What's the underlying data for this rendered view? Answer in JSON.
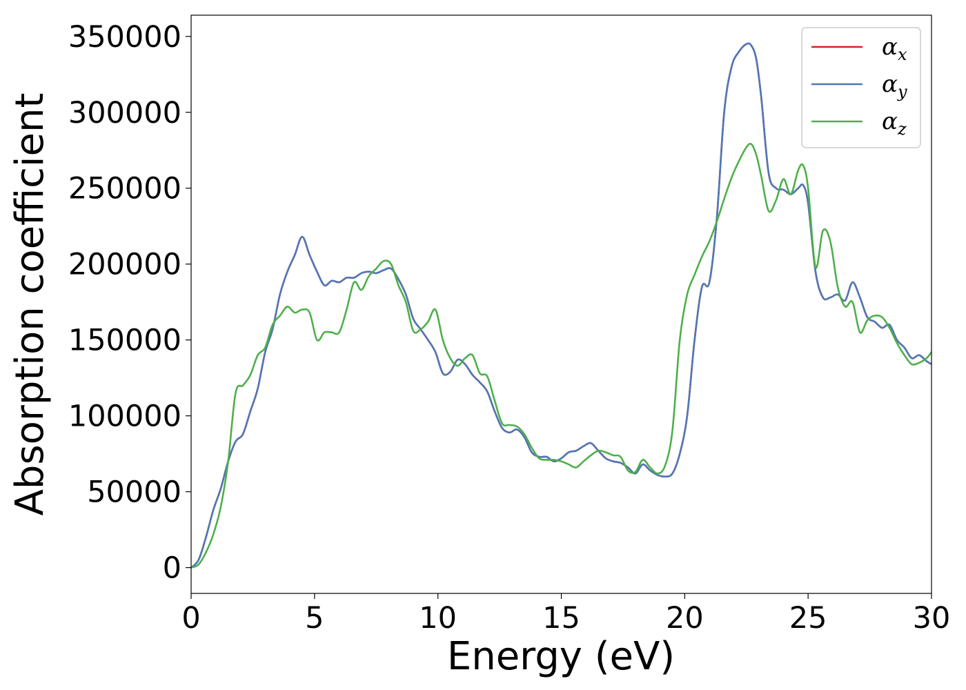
{
  "chart_data": {
    "type": "line",
    "title": "",
    "xlabel": "Energy (eV)",
    "ylabel": "Absorption coefficient",
    "xlim": [
      0,
      30
    ],
    "ylim": [
      -17000,
      364000
    ],
    "xticks": [
      0,
      5,
      10,
      15,
      20,
      25,
      30
    ],
    "yticks": [
      0,
      50000,
      100000,
      150000,
      200000,
      250000,
      300000,
      350000
    ],
    "grid": false,
    "legend_position": "top-right",
    "series": [
      {
        "name": "α",
        "subscript": "x",
        "color": "#e41a1c",
        "x": [
          0,
          0.3,
          0.6,
          0.9,
          1.2,
          1.5,
          1.8,
          2.1,
          2.4,
          2.7,
          3.0,
          3.3,
          3.6,
          3.9,
          4.2,
          4.5,
          4.8,
          5.1,
          5.4,
          5.7,
          6.0,
          6.3,
          6.6,
          6.9,
          7.2,
          7.5,
          7.8,
          8.1,
          8.4,
          8.7,
          9.0,
          9.3,
          9.6,
          9.9,
          10.2,
          10.5,
          10.8,
          11.1,
          11.4,
          11.7,
          12.0,
          12.3,
          12.6,
          12.9,
          13.2,
          13.5,
          13.8,
          14.1,
          14.4,
          14.7,
          15.0,
          15.3,
          15.6,
          15.9,
          16.2,
          16.5,
          16.8,
          17.1,
          17.4,
          17.7,
          18.0,
          18.3,
          18.6,
          18.9,
          19.2,
          19.5,
          19.8,
          20.1,
          20.4,
          20.7,
          21.0,
          21.3,
          21.6,
          21.9,
          22.2,
          22.5,
          22.7,
          22.9,
          23.1,
          23.4,
          23.7,
          24.0,
          24.3,
          24.6,
          24.8,
          25.0,
          25.3,
          25.6,
          25.9,
          26.2,
          26.5,
          26.8,
          27.1,
          27.4,
          27.7,
          28.0,
          28.3,
          28.6,
          28.9,
          29.2,
          29.5,
          29.8,
          30.0
        ],
        "y": [
          0,
          5000,
          20000,
          38000,
          52000,
          70000,
          83000,
          88000,
          103000,
          118000,
          142000,
          157000,
          180000,
          195000,
          206000,
          218000,
          206000,
          195000,
          186000,
          189000,
          188000,
          191000,
          191000,
          194000,
          195000,
          194000,
          196000,
          197000,
          190000,
          180000,
          164000,
          157000,
          150000,
          142000,
          128000,
          129000,
          137000,
          134000,
          127000,
          122000,
          116000,
          103000,
          92000,
          89000,
          91000,
          86000,
          76000,
          73000,
          73000,
          70000,
          72000,
          76000,
          77000,
          80000,
          82000,
          77000,
          72000,
          70000,
          69000,
          66000,
          62000,
          68000,
          64000,
          61000,
          60000,
          62000,
          75000,
          100000,
          150000,
          185000,
          188000,
          230000,
          300000,
          330000,
          340000,
          345000,
          344000,
          335000,
          310000,
          260000,
          250000,
          249000,
          246000,
          250000,
          252000,
          240000,
          195000,
          178000,
          178000,
          180000,
          176000,
          188000,
          178000,
          165000,
          162000,
          158000,
          160000,
          150000,
          145000,
          138000,
          140000,
          136000,
          134000
        ]
      },
      {
        "name": "α",
        "subscript": "y",
        "color": "#4e79b7",
        "x": [
          0,
          0.3,
          0.6,
          0.9,
          1.2,
          1.5,
          1.8,
          2.1,
          2.4,
          2.7,
          3.0,
          3.3,
          3.6,
          3.9,
          4.2,
          4.5,
          4.8,
          5.1,
          5.4,
          5.7,
          6.0,
          6.3,
          6.6,
          6.9,
          7.2,
          7.5,
          7.8,
          8.1,
          8.4,
          8.7,
          9.0,
          9.3,
          9.6,
          9.9,
          10.2,
          10.5,
          10.8,
          11.1,
          11.4,
          11.7,
          12.0,
          12.3,
          12.6,
          12.9,
          13.2,
          13.5,
          13.8,
          14.1,
          14.4,
          14.7,
          15.0,
          15.3,
          15.6,
          15.9,
          16.2,
          16.5,
          16.8,
          17.1,
          17.4,
          17.7,
          18.0,
          18.3,
          18.6,
          18.9,
          19.2,
          19.5,
          19.8,
          20.1,
          20.4,
          20.7,
          21.0,
          21.3,
          21.6,
          21.9,
          22.2,
          22.5,
          22.7,
          22.9,
          23.1,
          23.4,
          23.7,
          24.0,
          24.3,
          24.6,
          24.8,
          25.0,
          25.3,
          25.6,
          25.9,
          26.2,
          26.5,
          26.8,
          27.1,
          27.4,
          27.7,
          28.0,
          28.3,
          28.6,
          28.9,
          29.2,
          29.5,
          29.8,
          30.0
        ],
        "y": [
          0,
          5000,
          20000,
          38000,
          52000,
          70000,
          83000,
          88000,
          103000,
          118000,
          142000,
          157000,
          180000,
          195000,
          206000,
          218000,
          206000,
          195000,
          186000,
          189000,
          188000,
          191000,
          191000,
          194000,
          195000,
          194000,
          196000,
          197000,
          190000,
          180000,
          164000,
          157000,
          150000,
          142000,
          128000,
          129000,
          137000,
          134000,
          127000,
          122000,
          116000,
          103000,
          92000,
          89000,
          91000,
          86000,
          76000,
          73000,
          73000,
          70000,
          72000,
          76000,
          77000,
          80000,
          82000,
          77000,
          72000,
          70000,
          69000,
          66000,
          62000,
          68000,
          64000,
          61000,
          60000,
          62000,
          75000,
          100000,
          150000,
          185000,
          188000,
          230000,
          300000,
          330000,
          340000,
          345000,
          344000,
          335000,
          310000,
          260000,
          250000,
          249000,
          246000,
          250000,
          252000,
          240000,
          195000,
          178000,
          178000,
          180000,
          176000,
          188000,
          178000,
          165000,
          162000,
          158000,
          160000,
          150000,
          145000,
          138000,
          140000,
          136000,
          134000
        ]
      },
      {
        "name": "α",
        "subscript": "z",
        "color": "#4daf4a",
        "x": [
          0,
          0.3,
          0.6,
          0.9,
          1.2,
          1.5,
          1.8,
          2.1,
          2.4,
          2.7,
          3.0,
          3.3,
          3.6,
          3.9,
          4.2,
          4.5,
          4.8,
          5.1,
          5.4,
          5.7,
          6.0,
          6.3,
          6.6,
          6.9,
          7.2,
          7.5,
          7.8,
          8.1,
          8.4,
          8.7,
          9.0,
          9.3,
          9.6,
          9.9,
          10.2,
          10.5,
          10.8,
          11.1,
          11.4,
          11.7,
          12.0,
          12.3,
          12.6,
          12.9,
          13.2,
          13.5,
          13.8,
          14.1,
          14.4,
          14.7,
          15.0,
          15.3,
          15.6,
          15.9,
          16.2,
          16.5,
          16.8,
          17.1,
          17.4,
          17.7,
          18.0,
          18.3,
          18.6,
          18.9,
          19.2,
          19.5,
          19.8,
          20.1,
          20.4,
          20.7,
          21.0,
          21.3,
          21.6,
          21.9,
          22.2,
          22.5,
          22.7,
          22.9,
          23.1,
          23.4,
          23.7,
          24.0,
          24.3,
          24.6,
          24.8,
          25.0,
          25.3,
          25.6,
          25.9,
          26.2,
          26.5,
          26.8,
          27.1,
          27.4,
          27.7,
          28.0,
          28.3,
          28.6,
          28.9,
          29.2,
          29.5,
          29.8,
          30.0
        ],
        "y": [
          0,
          2000,
          10000,
          22000,
          40000,
          70000,
          115000,
          120000,
          127000,
          140000,
          145000,
          160000,
          166000,
          172000,
          168000,
          170000,
          168000,
          150000,
          155000,
          155000,
          155000,
          170000,
          188000,
          183000,
          192000,
          197000,
          202000,
          200000,
          186000,
          175000,
          156000,
          157000,
          162000,
          170000,
          150000,
          138000,
          133000,
          138000,
          140000,
          128000,
          126000,
          110000,
          95000,
          94000,
          93000,
          88000,
          79000,
          72000,
          71000,
          71000,
          70000,
          68000,
          66000,
          70000,
          74000,
          77000,
          76000,
          74000,
          73000,
          64000,
          63000,
          71000,
          66000,
          62000,
          67000,
          90000,
          150000,
          180000,
          193000,
          205000,
          215000,
          228000,
          243000,
          257000,
          268000,
          277000,
          279000,
          272000,
          258000,
          235000,
          242000,
          256000,
          246000,
          262000,
          265000,
          250000,
          198000,
          222000,
          215000,
          185000,
          172000,
          175000,
          155000,
          163000,
          166000,
          165000,
          158000,
          148000,
          140000,
          134000,
          135000,
          138000,
          142000
        ]
      }
    ]
  }
}
